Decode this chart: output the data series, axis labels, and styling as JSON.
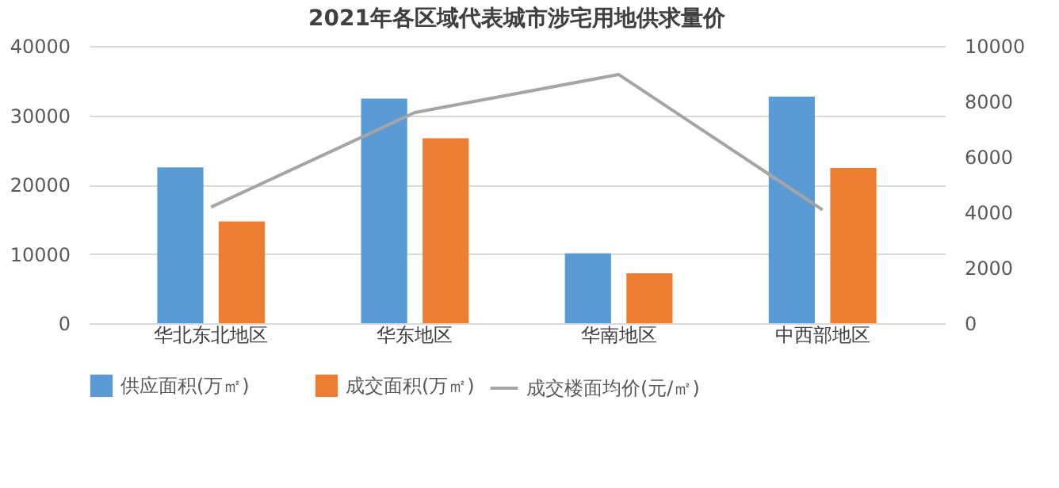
{
  "chart_data": {
    "type": "bar",
    "title": "2021年各区域代表城市涉宅用地供求量价",
    "categories": [
      "华北东北地区",
      "华东地区",
      "华南地区",
      "中西部地区"
    ],
    "series": [
      {
        "name": "供应面积(万㎡)",
        "color": "#5b9bd5",
        "values": [
          22500,
          32400,
          10100,
          32700
        ]
      },
      {
        "name": "成交面积(万㎡)",
        "color": "#ed7d31",
        "values": [
          14700,
          26700,
          7200,
          22400
        ]
      },
      {
        "name": "成交楼面均价(元/㎡)",
        "color": "#a5a5a5",
        "type": "line",
        "axis": "y2",
        "values": [
          4190,
          7600,
          8970,
          4090
        ]
      }
    ],
    "ylim": [
      0,
      40000
    ],
    "yticks": [
      0,
      10000,
      20000,
      30000,
      40000
    ],
    "y2lim": [
      0,
      10000
    ],
    "y2ticks": [
      0,
      2000,
      4000,
      6000,
      8000,
      10000
    ],
    "grid": "y",
    "legend": "bottom",
    "marker": "none"
  }
}
